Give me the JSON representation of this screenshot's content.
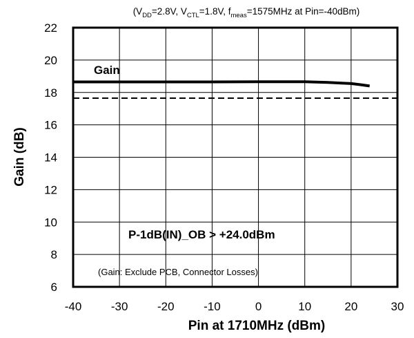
{
  "chart_data": {
    "type": "line",
    "header": {
      "p1": "(V",
      "s1": "DD",
      "p2": "=2.8V, V",
      "s2": "CTL",
      "p3": "=1.8V, f",
      "s3": "meas",
      "p4": "=1575MHz at Pin=-40dBm)"
    },
    "xlabel": "Pin at 1710MHz (dBm)",
    "ylabel": "Gain (dB)",
    "xlim": [
      -40,
      30
    ],
    "ylim": [
      6,
      22
    ],
    "x_ticks": [
      "-40",
      "-30",
      "-20",
      "-10",
      "0",
      "10",
      "20",
      "30"
    ],
    "y_ticks": [
      "6",
      "8",
      "10",
      "12",
      "14",
      "16",
      "18",
      "20",
      "22"
    ],
    "grid": true,
    "series": [
      {
        "name": "Gain",
        "style": "solid",
        "color": "#000000",
        "points": [
          {
            "x": -40,
            "y": 18.65
          },
          {
            "x": -30,
            "y": 18.65
          },
          {
            "x": -20,
            "y": 18.65
          },
          {
            "x": -10,
            "y": 18.65
          },
          {
            "x": 0,
            "y": 18.66
          },
          {
            "x": 10,
            "y": 18.66
          },
          {
            "x": 15,
            "y": 18.62
          },
          {
            "x": 18,
            "y": 18.58
          },
          {
            "x": 20,
            "y": 18.55
          },
          {
            "x": 22,
            "y": 18.48
          },
          {
            "x": 24,
            "y": 18.4
          }
        ]
      },
      {
        "name": "",
        "style": "dashed",
        "color": "#000000",
        "points": [
          {
            "x": -40,
            "y": 17.65
          },
          {
            "x": 30,
            "y": 17.65
          }
        ]
      }
    ],
    "annotations": {
      "series_label": "Gain",
      "p1db": "P-1dB(IN)_OB > +24.0dBm",
      "note": "(Gain: Exclude PCB, Connector Losses)"
    }
  }
}
